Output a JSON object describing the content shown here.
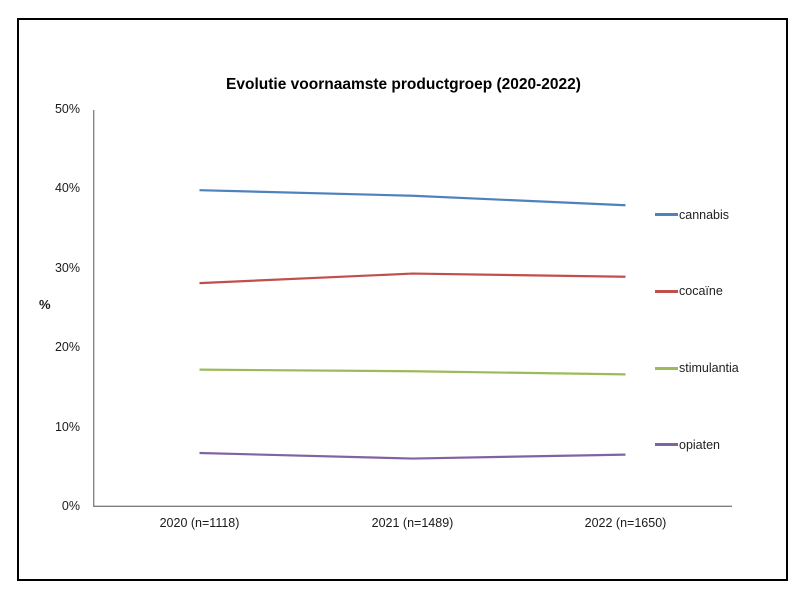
{
  "chart_data": {
    "type": "line",
    "title": "Evolutie voornaamste productgroep (2020-2022)",
    "xlabel": "",
    "ylabel": "%",
    "categories": [
      "2020 (n=1118)",
      "2021 (n=1489)",
      "2022 (n=1650)"
    ],
    "series": [
      {
        "name": "cannabis",
        "color": "#4F81BD",
        "values": [
          39.9,
          39.2,
          38.0
        ]
      },
      {
        "name": "cocaïne",
        "color": "#C0504D",
        "values": [
          28.2,
          29.4,
          29.0
        ]
      },
      {
        "name": "stimulantia",
        "color": "#9BBB59",
        "values": [
          17.3,
          17.1,
          16.7
        ]
      },
      {
        "name": "opiaten",
        "color": "#8064A2",
        "values": [
          6.8,
          6.1,
          6.6
        ]
      }
    ],
    "ylim": [
      0,
      50
    ],
    "yticks": [
      "0%",
      "10%",
      "20%",
      "30%",
      "40%",
      "50%"
    ],
    "ytick_values": [
      0,
      10,
      20,
      30,
      40,
      50
    ],
    "grid": false,
    "legend_position": "right",
    "axis_color": "#7f7f7f",
    "frame_border_color": "#000000",
    "background_color": "#ffffff"
  }
}
